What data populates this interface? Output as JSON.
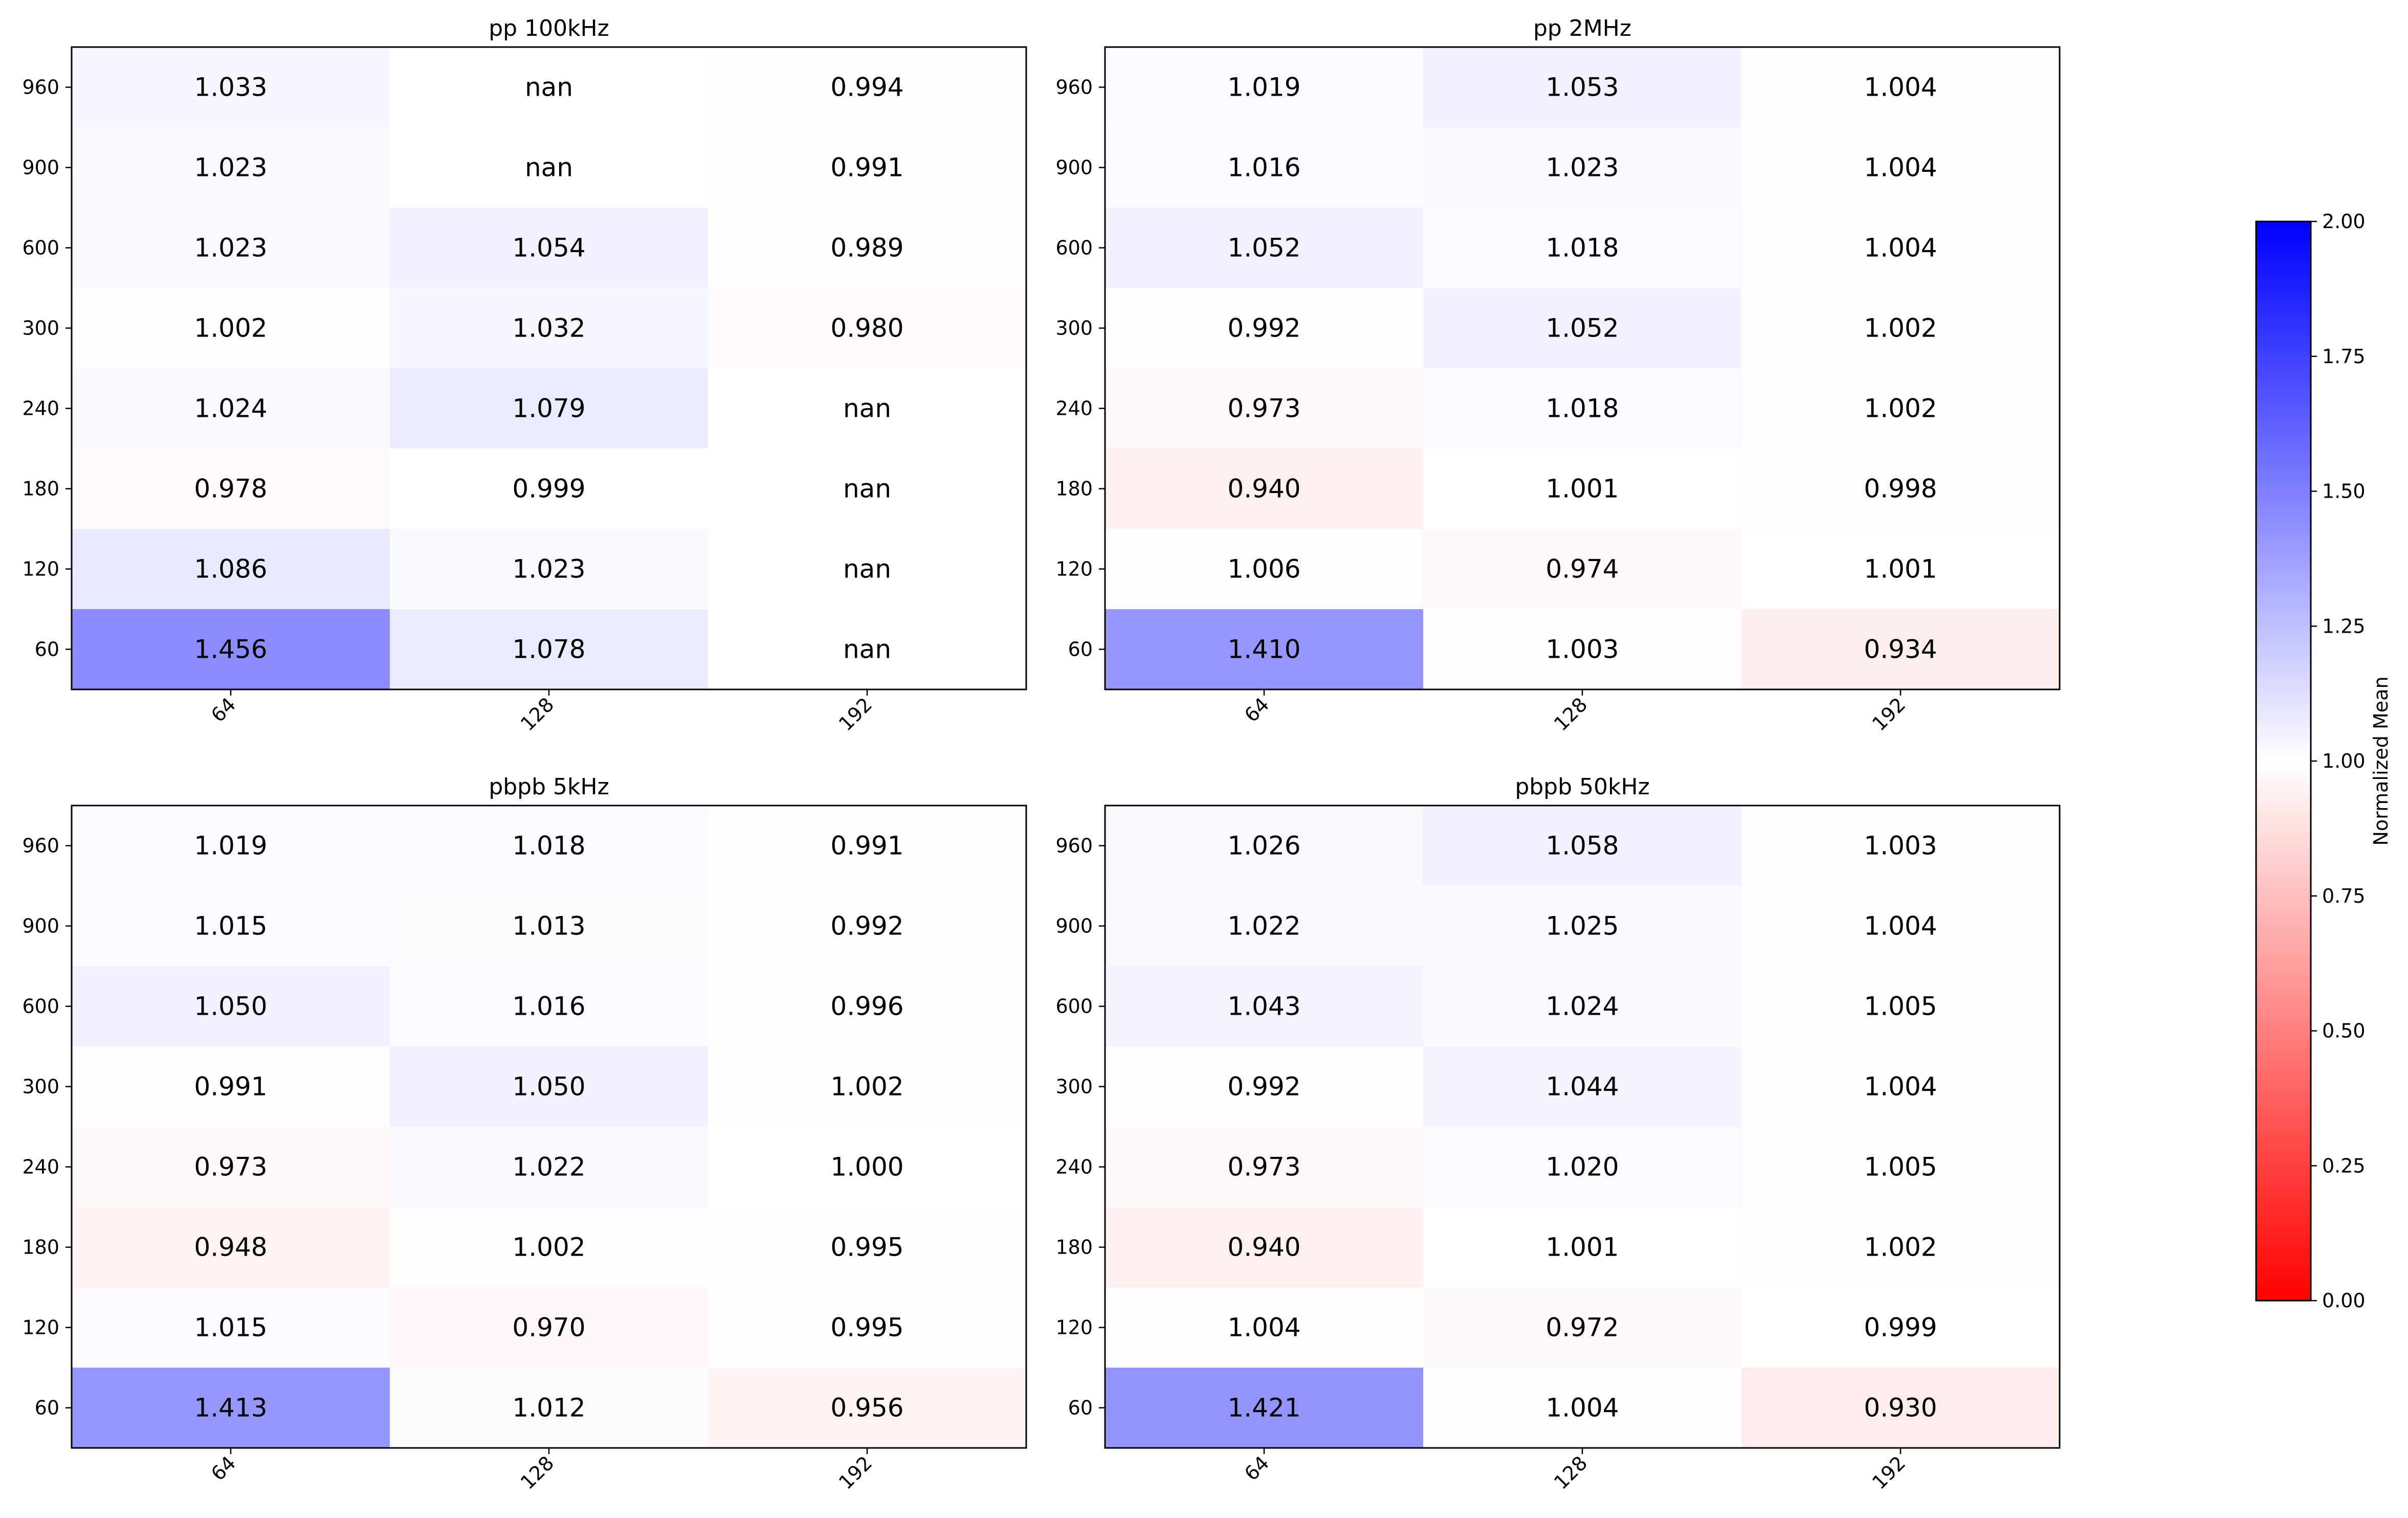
{
  "chart_data": {
    "type": "heatmap",
    "colormap": {
      "low": "#ff0000",
      "mid": "#ffffff",
      "high": "#0000ff"
    },
    "colorbar": {
      "label": "Normalized Mean",
      "range": [
        0.0,
        2.0
      ],
      "ticks": [
        "0.00",
        "0.25",
        "0.50",
        "0.75",
        "1.00",
        "1.25",
        "1.50",
        "1.75",
        "2.00"
      ]
    },
    "panels": [
      {
        "title": "pp 100kHz",
        "x_categories": [
          "64",
          "128",
          "192"
        ],
        "y_categories": [
          "960",
          "900",
          "600",
          "300",
          "240",
          "180",
          "120",
          "60"
        ],
        "values": [
          [
            "1.033",
            "nan",
            "0.994"
          ],
          [
            "1.023",
            "nan",
            "0.991"
          ],
          [
            "1.023",
            "1.054",
            "0.989"
          ],
          [
            "1.002",
            "1.032",
            "0.980"
          ],
          [
            "1.024",
            "1.079",
            "nan"
          ],
          [
            "0.978",
            "0.999",
            "nan"
          ],
          [
            "1.086",
            "1.023",
            "nan"
          ],
          [
            "1.456",
            "1.078",
            "nan"
          ]
        ]
      },
      {
        "title": "pp 2MHz",
        "x_categories": [
          "64",
          "128",
          "192"
        ],
        "y_categories": [
          "960",
          "900",
          "600",
          "300",
          "240",
          "180",
          "120",
          "60"
        ],
        "values": [
          [
            "1.019",
            "1.053",
            "1.004"
          ],
          [
            "1.016",
            "1.023",
            "1.004"
          ],
          [
            "1.052",
            "1.018",
            "1.004"
          ],
          [
            "0.992",
            "1.052",
            "1.002"
          ],
          [
            "0.973",
            "1.018",
            "1.002"
          ],
          [
            "0.940",
            "1.001",
            "0.998"
          ],
          [
            "1.006",
            "0.974",
            "1.001"
          ],
          [
            "1.410",
            "1.003",
            "0.934"
          ]
        ]
      },
      {
        "title": "pbpb 5kHz",
        "x_categories": [
          "64",
          "128",
          "192"
        ],
        "y_categories": [
          "960",
          "900",
          "600",
          "300",
          "240",
          "180",
          "120",
          "60"
        ],
        "values": [
          [
            "1.019",
            "1.018",
            "0.991"
          ],
          [
            "1.015",
            "1.013",
            "0.992"
          ],
          [
            "1.050",
            "1.016",
            "0.996"
          ],
          [
            "0.991",
            "1.050",
            "1.002"
          ],
          [
            "0.973",
            "1.022",
            "1.000"
          ],
          [
            "0.948",
            "1.002",
            "0.995"
          ],
          [
            "1.015",
            "0.970",
            "0.995"
          ],
          [
            "1.413",
            "1.012",
            "0.956"
          ]
        ]
      },
      {
        "title": "pbpb 50kHz",
        "x_categories": [
          "64",
          "128",
          "192"
        ],
        "y_categories": [
          "960",
          "900",
          "600",
          "300",
          "240",
          "180",
          "120",
          "60"
        ],
        "values": [
          [
            "1.026",
            "1.058",
            "1.003"
          ],
          [
            "1.022",
            "1.025",
            "1.004"
          ],
          [
            "1.043",
            "1.024",
            "1.005"
          ],
          [
            "0.992",
            "1.044",
            "1.004"
          ],
          [
            "0.973",
            "1.020",
            "1.005"
          ],
          [
            "0.940",
            "1.001",
            "1.002"
          ],
          [
            "1.004",
            "0.972",
            "0.999"
          ],
          [
            "1.421",
            "1.004",
            "0.930"
          ]
        ]
      }
    ]
  }
}
